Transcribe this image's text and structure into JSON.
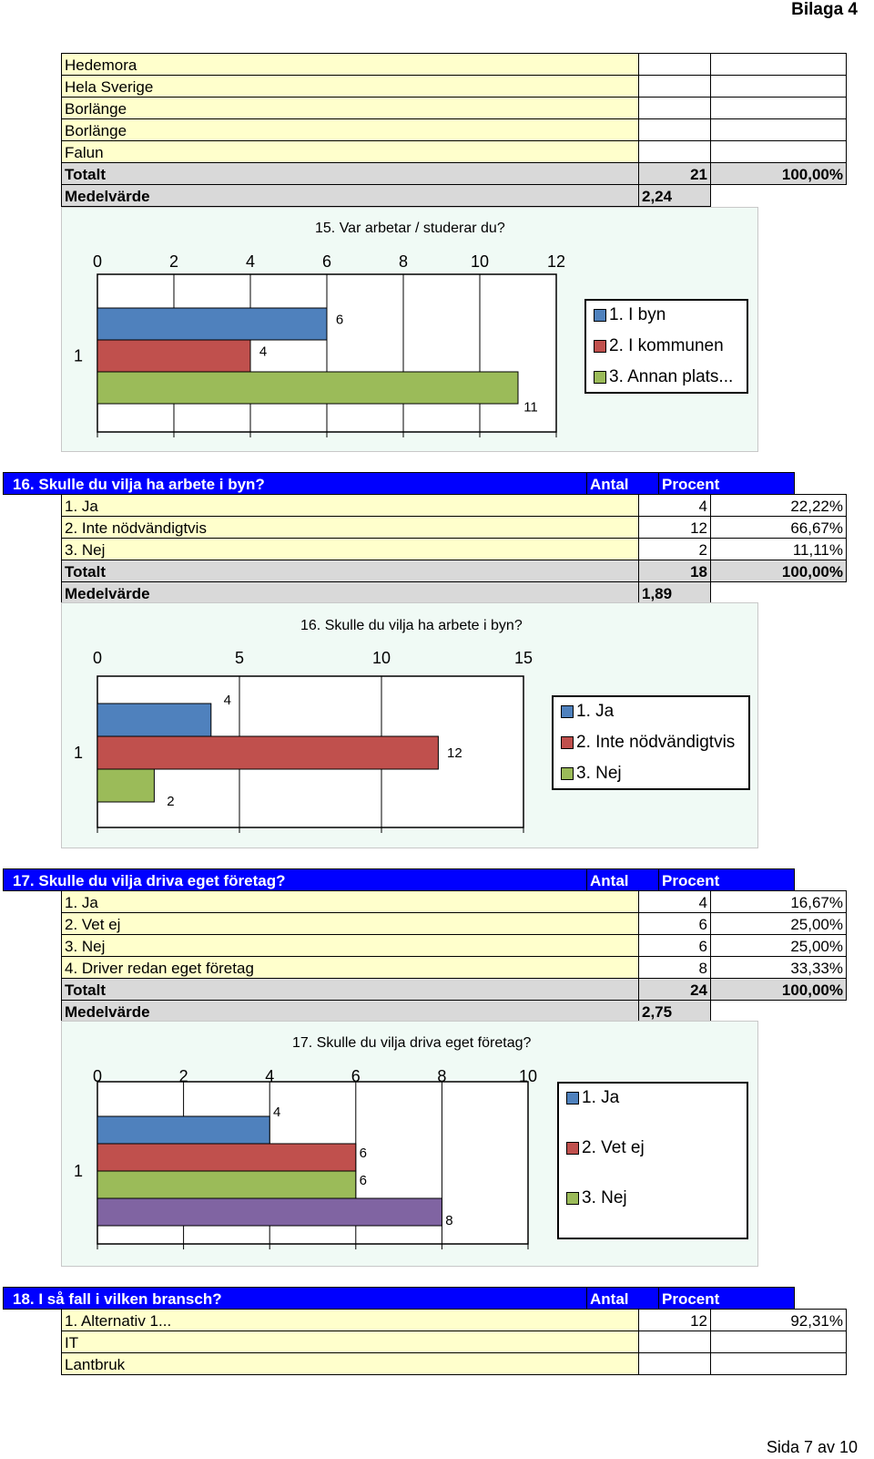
{
  "header": {
    "title": "Bilaga 4"
  },
  "footer": {
    "page": "Sida 7 av 10"
  },
  "q15_table": {
    "rows": [
      {
        "label": "Hedemora",
        "antal": "",
        "procent": ""
      },
      {
        "label": "Hela Sverige",
        "antal": "",
        "procent": ""
      },
      {
        "label": "Borlänge",
        "antal": "",
        "procent": ""
      },
      {
        "label": "Borlänge",
        "antal": "",
        "procent": ""
      },
      {
        "label": "Falun",
        "antal": "",
        "procent": ""
      }
    ],
    "total_label": "Totalt",
    "total_antal": "21",
    "total_procent": "100,00%",
    "mean_label": "Medelvärde",
    "mean_value": "2,24"
  },
  "q16_table": {
    "title": "16. Skulle du vilja ha arbete i byn?",
    "col_antal": "Antal",
    "col_procent": "Procent",
    "rows": [
      {
        "label": "1. Ja",
        "antal": "4",
        "procent": "22,22%"
      },
      {
        "label": "2. Inte nödvändigtvis",
        "antal": "12",
        "procent": "66,67%"
      },
      {
        "label": "3. Nej",
        "antal": "2",
        "procent": "11,11%"
      }
    ],
    "total_label": "Totalt",
    "total_antal": "18",
    "total_procent": "100,00%",
    "mean_label": "Medelvärde",
    "mean_value": "1,89"
  },
  "q17_table": {
    "title": "17. Skulle du vilja driva eget företag?",
    "col_antal": "Antal",
    "col_procent": "Procent",
    "rows": [
      {
        "label": "1. Ja",
        "antal": "4",
        "procent": "16,67%"
      },
      {
        "label": "2. Vet ej",
        "antal": "6",
        "procent": "25,00%"
      },
      {
        "label": "3. Nej",
        "antal": "6",
        "procent": "25,00%"
      },
      {
        "label": "4. Driver redan eget företag",
        "antal": "8",
        "procent": "33,33%"
      }
    ],
    "total_label": "Totalt",
    "total_antal": "24",
    "total_procent": "100,00%",
    "mean_label": "Medelvärde",
    "mean_value": "2,75"
  },
  "q18_table": {
    "title": "18. I så fall i vilken bransch?",
    "col_antal": "Antal",
    "col_procent": "Procent",
    "rows": [
      {
        "label": "1. Alternativ 1...",
        "antal": "12",
        "procent": "92,31%"
      },
      {
        "label": "IT",
        "antal": "",
        "procent": ""
      },
      {
        "label": "Lantbruk",
        "antal": "",
        "procent": ""
      }
    ]
  },
  "colors": {
    "blue": "#4f81bd",
    "red": "#c0504d",
    "green": "#9bbb59",
    "purple": "#8064a2",
    "header_blue": "#0000ff",
    "label_yellow": "#ffffcc"
  },
  "chart_data": [
    {
      "type": "bar",
      "orientation": "horizontal",
      "title": "15. Var arbetar / studerar du?",
      "category": "1",
      "series": [
        {
          "name": "1. I byn",
          "values": [
            6
          ]
        },
        {
          "name": "2. I kommunen",
          "values": [
            4
          ]
        },
        {
          "name": "3. Annan plats...",
          "values": [
            11
          ]
        }
      ],
      "xlim": [
        0,
        12
      ],
      "xticks": [
        0,
        2,
        4,
        6,
        8,
        10,
        12
      ],
      "grid": true,
      "legend_position": "right"
    },
    {
      "type": "bar",
      "orientation": "horizontal",
      "title": "16. Skulle du vilja ha arbete i byn?",
      "category": "1",
      "series": [
        {
          "name": "1. Ja",
          "values": [
            4
          ]
        },
        {
          "name": "2. Inte nödvändigtvis",
          "values": [
            12
          ]
        },
        {
          "name": "3. Nej",
          "values": [
            2
          ]
        }
      ],
      "xlim": [
        0,
        15
      ],
      "xticks": [
        0,
        5,
        10,
        15
      ],
      "grid": true,
      "legend_position": "right"
    },
    {
      "type": "bar",
      "orientation": "horizontal",
      "title": "17. Skulle du vilja driva eget företag?",
      "category": "1",
      "series": [
        {
          "name": "1. Ja",
          "values": [
            4
          ]
        },
        {
          "name": "2. Vet ej",
          "values": [
            6
          ]
        },
        {
          "name": "3. Nej",
          "values": [
            6
          ]
        },
        {
          "name": "",
          "values": [
            8
          ]
        }
      ],
      "legend_entries": [
        "1. Ja",
        "2. Vet ej",
        "3. Nej"
      ],
      "xlim": [
        0,
        10
      ],
      "xticks": [
        0,
        2,
        4,
        6,
        8,
        10
      ],
      "grid": true,
      "legend_position": "right"
    }
  ]
}
